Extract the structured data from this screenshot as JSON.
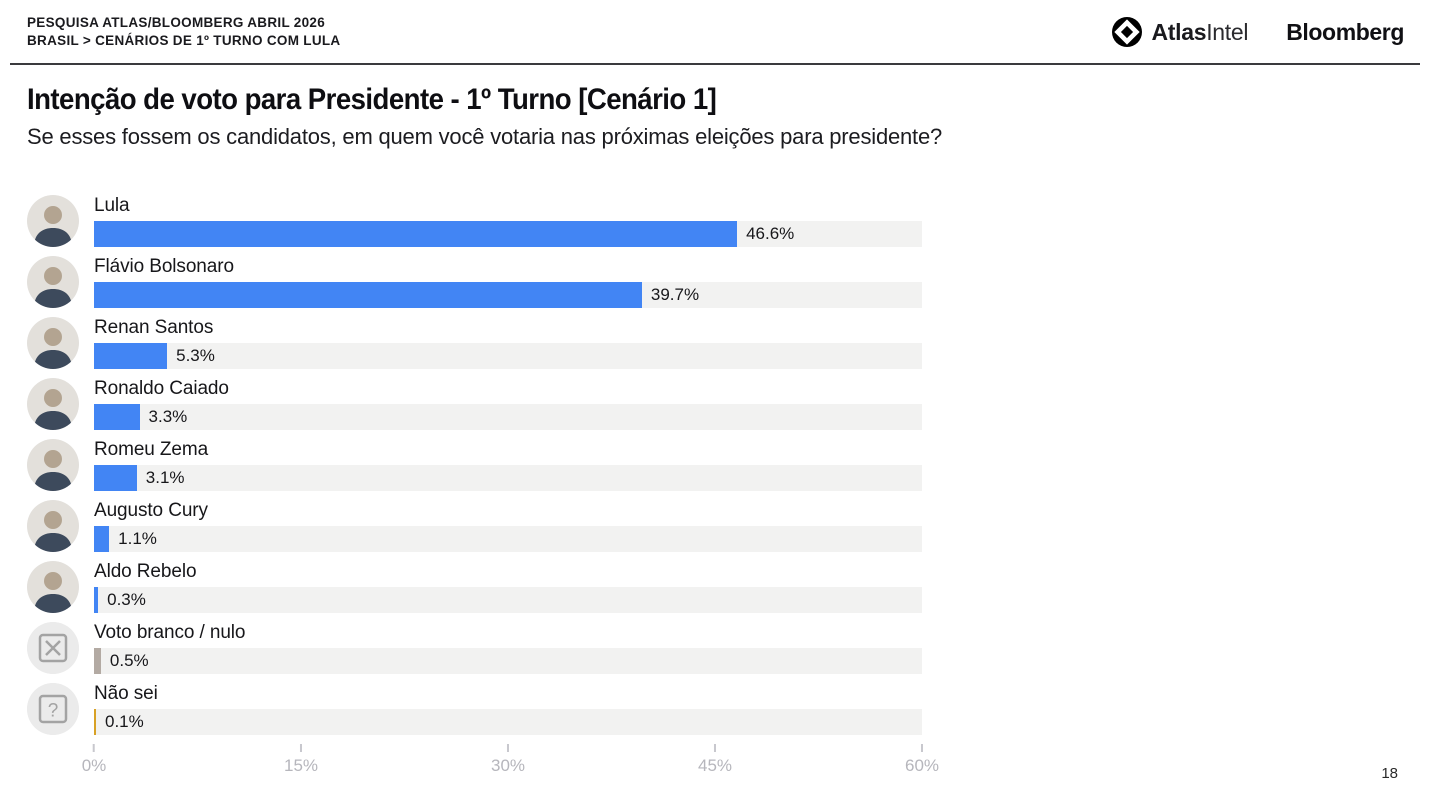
{
  "header": {
    "line1": "PESQUISA ATLAS/BLOOMBERG ABRIL 2026",
    "line2": "BRASIL > CENÁRIOS DE 1º TURNO COM LULA"
  },
  "logos": {
    "atlas_bold": "Atlas",
    "atlas_light": "Intel",
    "bloomberg": "Bloomberg"
  },
  "title": "Intenção de voto para Presidente - 1º Turno [Cenário 1]",
  "subtitle": "Se esses fossem os candidatos, em quem você votaria nas próximas eleições para presidente?",
  "page_number": "18",
  "chart_data": {
    "type": "bar",
    "orientation": "horizontal",
    "title": "Intenção de voto para Presidente - 1º Turno [Cenário 1]",
    "categories": [
      "Lula",
      "Flávio Bolsonaro",
      "Renan Santos",
      "Ronaldo Caiado",
      "Romeu Zema",
      "Augusto Cury",
      "Aldo Rebelo",
      "Voto branco / nulo",
      "Não sei"
    ],
    "values": [
      46.6,
      39.7,
      5.3,
      3.3,
      3.1,
      1.1,
      0.3,
      0.5,
      0.1
    ],
    "value_labels": [
      "46.6%",
      "39.7%",
      "5.3%",
      "3.3%",
      "3.1%",
      "1.1%",
      "0.3%",
      "0.5%",
      "0.1%"
    ],
    "bar_colors": [
      "#4285f4",
      "#4285f4",
      "#4285f4",
      "#4285f4",
      "#4285f4",
      "#4285f4",
      "#4285f4",
      "#b3aaa3",
      "#d8a125"
    ],
    "avatars": [
      "photo",
      "photo",
      "photo",
      "photo",
      "photo",
      "photo",
      "photo",
      "ballot-x",
      "question"
    ],
    "xlim": [
      0,
      60
    ],
    "x_ticks": [
      "0%",
      "15%",
      "30%",
      "45%",
      "60%"
    ],
    "x_tick_values": [
      0,
      15,
      30,
      45,
      60
    ],
    "grid": false,
    "legend": false
  },
  "colors": {
    "bar_blue": "#4285f4",
    "bar_blank_null": "#b3aaa3",
    "bar_dont_know": "#d8a125",
    "track": "#f2f2f1",
    "axis_text": "#b6b6bc",
    "text": "#17171a",
    "divider": "#3a3a3e"
  }
}
